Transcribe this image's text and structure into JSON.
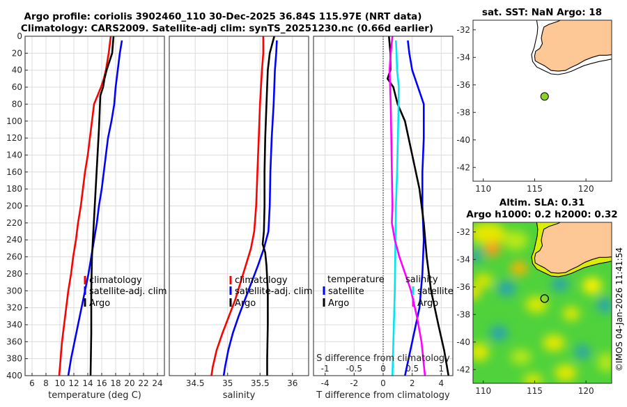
{
  "header": {
    "title_line1": "Argo profile: coriolis 3902460_110 30-Dec-2025 36.84S 115.97E (NRT data)",
    "title_line2": "Climatology: CARS2009. Satellite-adj clim: synTS_20251230.nc (0.66d earlier)"
  },
  "colors": {
    "climatology": "#ff0000",
    "satellite": "#0000ff",
    "argo": "#000000",
    "cyan": "#00e5ee",
    "magenta": "#ff00ff",
    "land": "#fdc896"
  },
  "chart_data": [
    {
      "type": "line",
      "id": "temperature",
      "xlabel": "temperature (deg C)",
      "xlim": [
        5,
        25
      ],
      "ylim": [
        400,
        0
      ],
      "xticks": [
        "6",
        "8",
        "10",
        "12",
        "14",
        "16",
        "18",
        "20",
        "22",
        "24"
      ],
      "yticks": [
        "0",
        "20",
        "40",
        "60",
        "80",
        "100",
        "120",
        "140",
        "160",
        "180",
        "200",
        "220",
        "240",
        "260",
        "280",
        "300",
        "320",
        "340",
        "360",
        "380",
        "400"
      ],
      "legend": [
        "climatology",
        "satellite-adj. clim",
        "Argo"
      ],
      "series": [
        {
          "name": "climatology",
          "color": "#ff0000",
          "points": [
            [
              17.3,
              0
            ],
            [
              17.0,
              20
            ],
            [
              16.6,
              40
            ],
            [
              16.3,
              50
            ],
            [
              15.9,
              60
            ],
            [
              15.4,
              70
            ],
            [
              14.9,
              80
            ],
            [
              14.6,
              100
            ],
            [
              14.3,
              120
            ],
            [
              14.0,
              140
            ],
            [
              13.6,
              160
            ],
            [
              13.3,
              180
            ],
            [
              13.0,
              200
            ],
            [
              12.6,
              220
            ],
            [
              12.3,
              240
            ],
            [
              11.9,
              260
            ],
            [
              11.6,
              280
            ],
            [
              11.2,
              300
            ],
            [
              10.9,
              320
            ],
            [
              10.6,
              340
            ],
            [
              10.3,
              360
            ],
            [
              10.1,
              380
            ],
            [
              9.9,
              400
            ]
          ]
        },
        {
          "name": "satellite-adj. clim",
          "color": "#0000ff",
          "points": [
            [
              18.9,
              5
            ],
            [
              18.6,
              20
            ],
            [
              18.3,
              40
            ],
            [
              18.0,
              60
            ],
            [
              17.8,
              80
            ],
            [
              17.4,
              100
            ],
            [
              16.9,
              120
            ],
            [
              16.6,
              140
            ],
            [
              16.3,
              160
            ],
            [
              16.0,
              180
            ],
            [
              15.6,
              200
            ],
            [
              15.3,
              220
            ],
            [
              14.9,
              240
            ],
            [
              14.5,
              260
            ],
            [
              14.1,
              280
            ],
            [
              13.6,
              300
            ],
            [
              13.1,
              320
            ],
            [
              12.6,
              340
            ],
            [
              12.1,
              360
            ],
            [
              11.6,
              380
            ],
            [
              11.2,
              400
            ]
          ]
        },
        {
          "name": "Argo",
          "color": "#000000",
          "points": [
            [
              17.7,
              0
            ],
            [
              17.5,
              20
            ],
            [
              17.1,
              30
            ],
            [
              16.7,
              40
            ],
            [
              16.4,
              50
            ],
            [
              16.2,
              60
            ],
            [
              15.8,
              70
            ],
            [
              15.7,
              90
            ],
            [
              15.6,
              110
            ],
            [
              15.4,
              140
            ],
            [
              15.2,
              170
            ],
            [
              15.0,
              200
            ],
            [
              14.8,
              230
            ],
            [
              14.6,
              260
            ],
            [
              14.5,
              300
            ],
            [
              14.5,
              350
            ],
            [
              14.4,
              400
            ]
          ]
        }
      ]
    },
    {
      "type": "line",
      "id": "salinity",
      "xlabel": "salinity",
      "xlim": [
        34.1,
        36.25
      ],
      "ylim": [
        400,
        0
      ],
      "xticks": [
        "34.5",
        "35",
        "35.5",
        "36"
      ],
      "legend": [
        "climatology",
        "satellite-adj. clim",
        "Argo"
      ],
      "series": [
        {
          "name": "climatology",
          "color": "#ff0000",
          "points": [
            [
              35.55,
              0
            ],
            [
              35.55,
              20
            ],
            [
              35.53,
              40
            ],
            [
              35.5,
              80
            ],
            [
              35.48,
              120
            ],
            [
              35.46,
              160
            ],
            [
              35.44,
              200
            ],
            [
              35.41,
              230
            ],
            [
              35.36,
              250
            ],
            [
              35.28,
              270
            ],
            [
              35.2,
              290
            ],
            [
              35.12,
              310
            ],
            [
              35.02,
              330
            ],
            [
              34.92,
              350
            ],
            [
              34.83,
              370
            ],
            [
              34.77,
              390
            ],
            [
              34.75,
              400
            ]
          ]
        },
        {
          "name": "satellite-adj. clim",
          "color": "#0000ff",
          "points": [
            [
              35.76,
              5
            ],
            [
              35.75,
              20
            ],
            [
              35.73,
              40
            ],
            [
              35.71,
              80
            ],
            [
              35.68,
              120
            ],
            [
              35.66,
              160
            ],
            [
              35.65,
              200
            ],
            [
              35.63,
              230
            ],
            [
              35.56,
              250
            ],
            [
              35.47,
              270
            ],
            [
              35.37,
              290
            ],
            [
              35.27,
              310
            ],
            [
              35.17,
              330
            ],
            [
              35.08,
              350
            ],
            [
              35.01,
              370
            ],
            [
              34.96,
              390
            ],
            [
              34.94,
              400
            ]
          ]
        },
        {
          "name": "Argo",
          "color": "#000000",
          "points": [
            [
              35.72,
              0
            ],
            [
              35.65,
              20
            ],
            [
              35.62,
              40
            ],
            [
              35.6,
              80
            ],
            [
              35.58,
              120
            ],
            [
              35.57,
              160
            ],
            [
              35.57,
              200
            ],
            [
              35.56,
              230
            ],
            [
              35.54,
              245
            ],
            [
              35.58,
              255
            ],
            [
              35.6,
              270
            ],
            [
              35.62,
              300
            ],
            [
              35.62,
              340
            ],
            [
              35.61,
              380
            ],
            [
              35.61,
              400
            ]
          ]
        }
      ]
    },
    {
      "type": "line",
      "id": "differences",
      "xlabel": "T difference from climatology",
      "xlabel_top": "S difference from climatology",
      "xlim": [
        -4.8,
        4.8
      ],
      "ylim": [
        400,
        0
      ],
      "xticks": [
        "-4",
        "-2",
        "0",
        "2",
        "4"
      ],
      "xticks_top": [
        "-1",
        "-0.5",
        "0",
        "0.5",
        "1"
      ],
      "legend_temperature": {
        "title": "temperature",
        "items": [
          "satellite",
          "Argo"
        ]
      },
      "legend_salinity": {
        "title": "salinity",
        "items": [
          "satellite",
          "Argo"
        ]
      },
      "series": [
        {
          "name": "T satellite",
          "color": "#0000ff",
          "points": [
            [
              1.7,
              5
            ],
            [
              1.8,
              20
            ],
            [
              2.0,
              40
            ],
            [
              2.4,
              60
            ],
            [
              2.8,
              80
            ],
            [
              2.8,
              120
            ],
            [
              2.7,
              160
            ],
            [
              2.7,
              200
            ],
            [
              2.8,
              240
            ],
            [
              2.7,
              280
            ],
            [
              2.5,
              320
            ],
            [
              2.0,
              360
            ],
            [
              1.5,
              400
            ]
          ]
        },
        {
          "name": "T Argo",
          "color": "#000000",
          "points": [
            [
              0.4,
              0
            ],
            [
              0.5,
              20
            ],
            [
              0.5,
              40
            ],
            [
              0.3,
              50
            ],
            [
              0.7,
              60
            ],
            [
              1.0,
              80
            ],
            [
              1.5,
              100
            ],
            [
              2.0,
              140
            ],
            [
              2.5,
              180
            ],
            [
              2.8,
              220
            ],
            [
              2.9,
              240
            ],
            [
              3.0,
              260
            ],
            [
              3.3,
              300
            ],
            [
              3.8,
              340
            ],
            [
              4.2,
              370
            ],
            [
              4.5,
              400
            ]
          ]
        },
        {
          "name": "S satellite",
          "color": "#00e5ee",
          "points": [
            [
              0.22,
              5
            ],
            [
              0.23,
              20
            ],
            [
              0.24,
              40
            ],
            [
              0.27,
              60
            ],
            [
              0.26,
              100
            ],
            [
              0.24,
              160
            ],
            [
              0.22,
              200
            ],
            [
              0.21,
              250
            ],
            [
              0.2,
              300
            ],
            [
              0.18,
              350
            ],
            [
              0.16,
              400
            ]
          ]
        },
        {
          "name": "S Argo",
          "color": "#ff00ff",
          "points": [
            [
              0.16,
              0
            ],
            [
              0.13,
              20
            ],
            [
              0.11,
              40
            ],
            [
              0.12,
              60
            ],
            [
              0.13,
              80
            ],
            [
              0.14,
              120
            ],
            [
              0.15,
              160
            ],
            [
              0.16,
              200
            ],
            [
              0.15,
              220
            ],
            [
              0.2,
              240
            ],
            [
              0.28,
              260
            ],
            [
              0.38,
              280
            ],
            [
              0.48,
              300
            ],
            [
              0.58,
              330
            ],
            [
              0.66,
              360
            ],
            [
              0.72,
              400
            ]
          ]
        }
      ]
    },
    {
      "type": "map",
      "id": "sst_map",
      "title": "sat. SST: NaN Argo: 18",
      "xlim": [
        109,
        122.5
      ],
      "ylim": [
        -43,
        -31.3
      ],
      "xticks": [
        "110",
        "115",
        "120"
      ],
      "yticks": [
        "-32",
        "-34",
        "-36",
        "-38",
        "-40",
        "-42"
      ],
      "marker": {
        "lon": 115.97,
        "lat": -36.84,
        "color": "#8fcf2a"
      }
    },
    {
      "type": "map",
      "id": "sla_map",
      "title_line1": "Altim. SLA: 0.31",
      "title_line2": "Argo h1000: 0.2 h2000: 0.32",
      "xlim": [
        109,
        122.5
      ],
      "ylim": [
        -43,
        -31.3
      ],
      "xticks": [
        "110",
        "115",
        "120"
      ],
      "yticks": [
        "-32",
        "-34",
        "-36",
        "-38",
        "-40",
        "-42"
      ],
      "marker": {
        "lon": 115.97,
        "lat": -36.84
      }
    }
  ],
  "watermark": "©IMOS 04-Jan-2026 11:41:54"
}
